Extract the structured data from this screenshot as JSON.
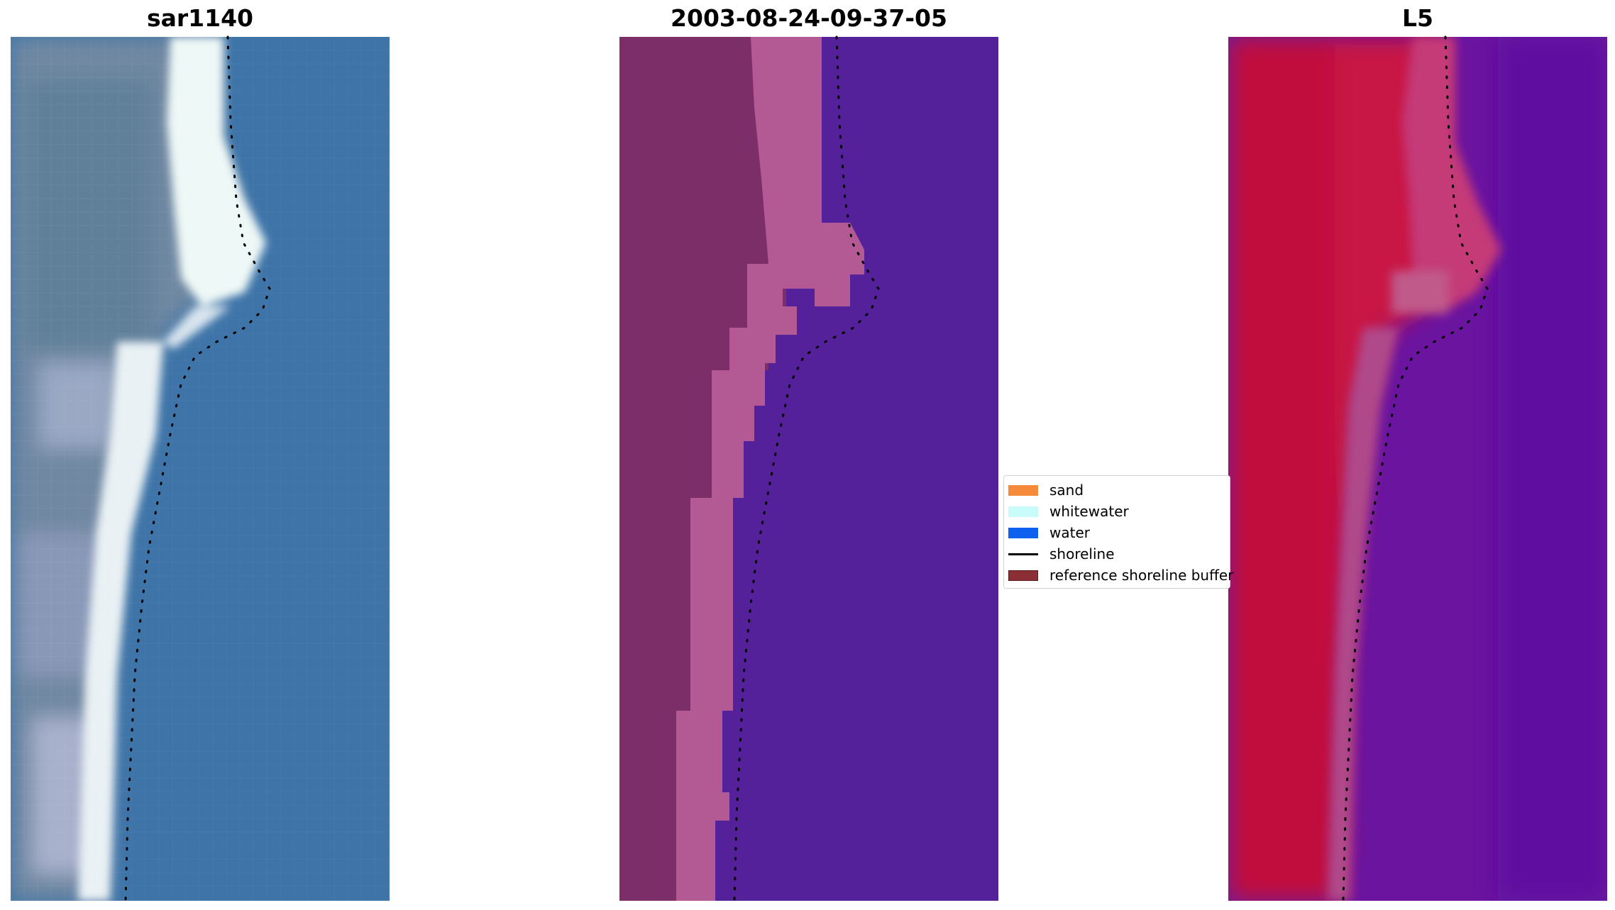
{
  "panels": [
    {
      "title": "sar1140"
    },
    {
      "title": "2003-08-24-09-37-05"
    },
    {
      "title": "L5"
    }
  ],
  "legend": {
    "items": [
      {
        "label": "sand",
        "color": "#f58a3a",
        "kind": "patch"
      },
      {
        "label": "whitewater",
        "color": "#c8fbf9",
        "kind": "patch"
      },
      {
        "label": "water",
        "color": "#1060f0",
        "kind": "patch"
      },
      {
        "label": "shoreline",
        "color": "#000000",
        "kind": "line"
      },
      {
        "label": "reference shoreline buffer",
        "color": "#8b2e35",
        "kind": "patch"
      }
    ]
  },
  "colors": {
    "rgb_water": "#3f78aa",
    "rgb_land": "#6d88a4",
    "rgb_whitewater": "#e8f4f6",
    "class_land": "#7b2e68",
    "class_sand": "#b35a94",
    "class_water": "#55219a",
    "ndwi_land": "#c81445",
    "ndwi_water": "#6a14a0",
    "ndwi_transition": "#b04a8a"
  }
}
